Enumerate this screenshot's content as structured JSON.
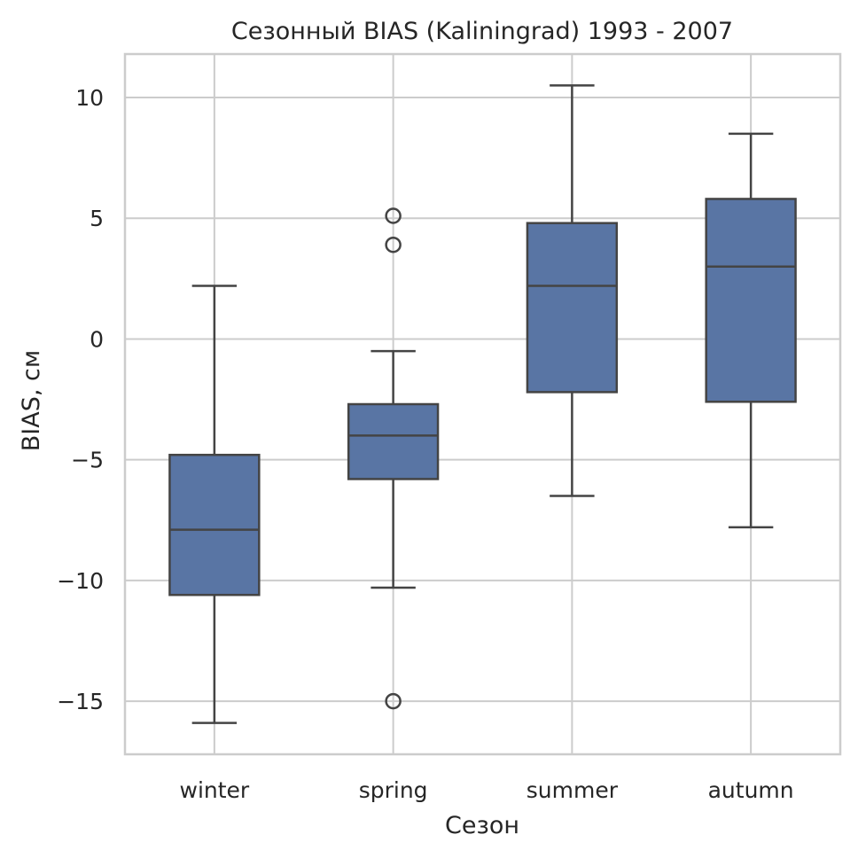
{
  "chart_data": {
    "type": "boxplot",
    "title": "Сезонный BIAS (Kaliningrad) 1993 - 2007",
    "xlabel": "Сезон",
    "ylabel": "BIAS, см",
    "ylim": [
      -17.2,
      11.8
    ],
    "yticks": [
      10,
      5,
      0,
      -5,
      -10,
      -15
    ],
    "ytick_labels": [
      "10",
      "5",
      "0",
      "−5",
      "−10",
      "−15"
    ],
    "grid": true,
    "box_color": "#5975a4",
    "categories": [
      "winter",
      "spring",
      "summer",
      "autumn"
    ],
    "boxes": [
      {
        "category": "winter",
        "whisker_low": -15.9,
        "q1": -10.6,
        "median": -7.9,
        "q3": -4.8,
        "whisker_high": 2.2,
        "outliers": []
      },
      {
        "category": "spring",
        "whisker_low": -10.3,
        "q1": -5.8,
        "median": -4.0,
        "q3": -2.7,
        "whisker_high": -0.5,
        "outliers": [
          5.1,
          3.9,
          -15.0
        ]
      },
      {
        "category": "summer",
        "whisker_low": -6.5,
        "q1": -2.2,
        "median": 2.2,
        "q3": 4.8,
        "whisker_high": 10.5,
        "outliers": []
      },
      {
        "category": "autumn",
        "whisker_low": -7.8,
        "q1": -2.6,
        "median": 3.0,
        "q3": 5.8,
        "whisker_high": 8.5,
        "outliers": []
      }
    ]
  }
}
